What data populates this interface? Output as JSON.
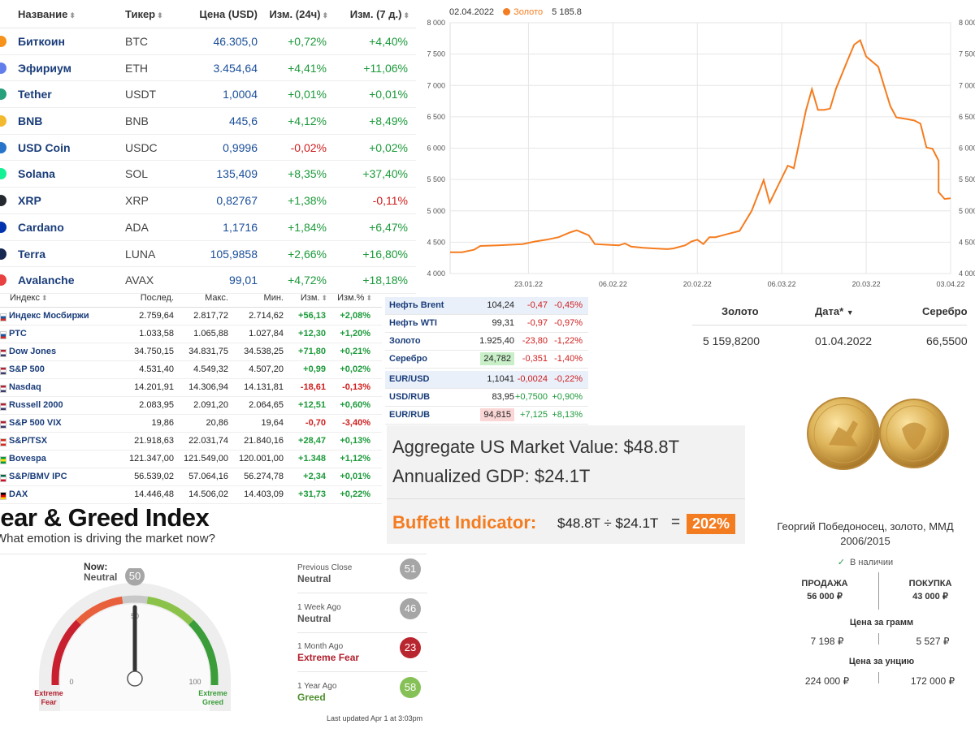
{
  "crypto": {
    "headers": {
      "name": "Название",
      "ticker": "Тикер",
      "price": "Цена (USD)",
      "h24": "Изм. (24ч)",
      "d7": "Изм. (7 д.)"
    },
    "rows": [
      {
        "name": "Биткоин",
        "ticker": "BTC",
        "price": "46.305,0",
        "h24": "+0,72%",
        "d7": "+4,40%",
        "icon": "bitcoin-icon",
        "color": "#f7931a"
      },
      {
        "name": "Эфириум",
        "ticker": "ETH",
        "price": "3.454,64",
        "h24": "+4,41%",
        "d7": "+11,06%",
        "icon": "ethereum-icon",
        "color": "#627eea"
      },
      {
        "name": "Tether",
        "ticker": "USDT",
        "price": "1,0004",
        "h24": "+0,01%",
        "d7": "+0,01%",
        "icon": "tether-icon",
        "color": "#26a17b"
      },
      {
        "name": "BNB",
        "ticker": "BNB",
        "price": "445,6",
        "h24": "+4,12%",
        "d7": "+8,49%",
        "icon": "bnb-icon",
        "color": "#f3ba2f"
      },
      {
        "name": "USD Coin",
        "ticker": "USDC",
        "price": "0,9996",
        "h24": "-0,02%",
        "d7": "+0,02%",
        "icon": "usdc-icon",
        "color": "#2775ca"
      },
      {
        "name": "Solana",
        "ticker": "SOL",
        "price": "135,409",
        "h24": "+8,35%",
        "d7": "+37,40%",
        "icon": "solana-icon",
        "color": "#14f195"
      },
      {
        "name": "XRP",
        "ticker": "XRP",
        "price": "0,82767",
        "h24": "+1,38%",
        "d7": "-0,11%",
        "icon": "xrp-icon",
        "color": "#23292f"
      },
      {
        "name": "Cardano",
        "ticker": "ADA",
        "price": "1,1716",
        "h24": "+1,84%",
        "d7": "+6,47%",
        "icon": "cardano-icon",
        "color": "#0033ad"
      },
      {
        "name": "Terra",
        "ticker": "LUNA",
        "price": "105,9858",
        "h24": "+2,66%",
        "d7": "+16,80%",
        "icon": "terra-icon",
        "color": "#172852"
      },
      {
        "name": "Avalanche",
        "ticker": "AVAX",
        "price": "99,01",
        "h24": "+4,72%",
        "d7": "+18,18%",
        "icon": "avalanche-icon",
        "color": "#e84142"
      }
    ]
  },
  "chart_data": {
    "type": "line",
    "legend": {
      "date": "02.04.2022",
      "series": "Золото",
      "value": "5 185.8"
    },
    "x_ticks": [
      "23.01.22",
      "06.02.22",
      "20.02.22",
      "06.03.22",
      "20.03.22",
      "03.04.22"
    ],
    "y_ticks": [
      "4 000",
      "4 500",
      "5 000",
      "5 500",
      "6 000",
      "6 500",
      "7 000",
      "7 500",
      "8 000"
    ],
    "ylim": [
      4000,
      8000
    ],
    "xlim": [
      "2022-01-10",
      "2022-04-03"
    ],
    "color": "#f57c1f",
    "series": [
      {
        "name": "Золото",
        "points": [
          [
            "2022-01-10",
            4340
          ],
          [
            "2022-01-12",
            4340
          ],
          [
            "2022-01-14",
            4380
          ],
          [
            "2022-01-15",
            4440
          ],
          [
            "2022-01-18",
            4450
          ],
          [
            "2022-01-20",
            4460
          ],
          [
            "2022-01-22",
            4470
          ],
          [
            "2022-01-24",
            4510
          ],
          [
            "2022-01-26",
            4540
          ],
          [
            "2022-01-28",
            4580
          ],
          [
            "2022-01-30",
            4660
          ],
          [
            "2022-01-31",
            4690
          ],
          [
            "2022-02-02",
            4610
          ],
          [
            "2022-02-03",
            4470
          ],
          [
            "2022-02-05",
            4460
          ],
          [
            "2022-02-07",
            4450
          ],
          [
            "2022-02-08",
            4480
          ],
          [
            "2022-02-09",
            4430
          ],
          [
            "2022-02-11",
            4410
          ],
          [
            "2022-02-13",
            4400
          ],
          [
            "2022-02-15",
            4390
          ],
          [
            "2022-02-16",
            4400
          ],
          [
            "2022-02-18",
            4450
          ],
          [
            "2022-02-19",
            4510
          ],
          [
            "2022-02-20",
            4540
          ],
          [
            "2022-02-21",
            4470
          ],
          [
            "2022-02-22",
            4580
          ],
          [
            "2022-02-23",
            4580
          ],
          [
            "2022-02-25",
            4630
          ],
          [
            "2022-02-27",
            4680
          ],
          [
            "2022-03-01",
            5000
          ],
          [
            "2022-03-03",
            5490
          ],
          [
            "2022-03-04",
            5130
          ],
          [
            "2022-03-07",
            5720
          ],
          [
            "2022-03-08",
            5680
          ],
          [
            "2022-03-10",
            6600
          ],
          [
            "2022-03-11",
            6940
          ],
          [
            "2022-03-12",
            6610
          ],
          [
            "2022-03-13",
            6610
          ],
          [
            "2022-03-14",
            6630
          ],
          [
            "2022-03-15",
            6950
          ],
          [
            "2022-03-17",
            7420
          ],
          [
            "2022-03-18",
            7650
          ],
          [
            "2022-03-19",
            7720
          ],
          [
            "2022-03-20",
            7460
          ],
          [
            "2022-03-22",
            7300
          ],
          [
            "2022-03-23",
            6980
          ],
          [
            "2022-03-24",
            6670
          ],
          [
            "2022-03-25",
            6490
          ],
          [
            "2022-03-27",
            6460
          ],
          [
            "2022-03-28",
            6440
          ],
          [
            "2022-03-29",
            6390
          ],
          [
            "2022-03-30",
            6010
          ],
          [
            "2022-03-31",
            5990
          ],
          [
            "2022-04-01",
            5800
          ],
          [
            "2022-04-01",
            5300
          ],
          [
            "2022-04-02",
            5190
          ],
          [
            "2022-04-03",
            5200
          ]
        ]
      }
    ]
  },
  "indices": {
    "headers": {
      "name": "Индекс",
      "last": "Послед.",
      "max": "Макс.",
      "min": "Мин.",
      "chg": "Изм.",
      "pct": "Изм.%"
    },
    "rows": [
      {
        "name": "Индекс Мосбиржи",
        "last": "2.759,64",
        "max": "2.817,72",
        "min": "2.714,62",
        "chg": "+56,13",
        "pct": "+2,08%",
        "flag": "flag-russia-icon"
      },
      {
        "name": "РТС",
        "last": "1.033,58",
        "max": "1.065,88",
        "min": "1.027,84",
        "chg": "+12,30",
        "pct": "+1,20%",
        "flag": "flag-russia-icon"
      },
      {
        "name": "Dow Jones",
        "last": "34.750,15",
        "max": "34.831,75",
        "min": "34.538,25",
        "chg": "+71,80",
        "pct": "+0,21%",
        "flag": "flag-usa-icon"
      },
      {
        "name": "S&P 500",
        "last": "4.531,40",
        "max": "4.549,32",
        "min": "4.507,20",
        "chg": "+0,99",
        "pct": "+0,02%",
        "flag": "flag-usa-icon"
      },
      {
        "name": "Nasdaq",
        "last": "14.201,91",
        "max": "14.306,94",
        "min": "14.131,81",
        "chg": "-18,61",
        "pct": "-0,13%",
        "flag": "flag-usa-icon"
      },
      {
        "name": "Russell 2000",
        "last": "2.083,95",
        "max": "2.091,20",
        "min": "2.064,65",
        "chg": "+12,51",
        "pct": "+0,60%",
        "flag": "flag-usa-icon"
      },
      {
        "name": "S&P 500 VIX",
        "last": "19,86",
        "max": "20,86",
        "min": "19,64",
        "chg": "-0,70",
        "pct": "-3,40%",
        "flag": "flag-usa-icon"
      },
      {
        "name": "S&P/TSX",
        "last": "21.918,63",
        "max": "22.031,74",
        "min": "21.840,16",
        "chg": "+28,47",
        "pct": "+0,13%",
        "flag": "flag-canada-icon"
      },
      {
        "name": "Bovespa",
        "last": "121.347,00",
        "max": "121.549,00",
        "min": "120.001,00",
        "chg": "+1.348",
        "pct": "+1,12%",
        "flag": "flag-brazil-icon"
      },
      {
        "name": "S&P/BMV IPC",
        "last": "56.539,02",
        "max": "57.064,16",
        "min": "56.274,78",
        "chg": "+2,34",
        "pct": "+0,01%",
        "flag": "flag-mexico-icon"
      },
      {
        "name": "DAX",
        "last": "14.446,48",
        "max": "14.506,02",
        "min": "14.403,09",
        "chg": "+31,73",
        "pct": "+0,22%",
        "flag": "flag-germany-icon"
      }
    ]
  },
  "commodities": [
    {
      "name": "Нефть Brent",
      "val": "104,24",
      "chg": "-0,47",
      "pct": "-0,45%",
      "hl": true
    },
    {
      "name": "Нефть WTI",
      "val": "99,31",
      "chg": "-0,97",
      "pct": "-0,97%",
      "hl": false
    },
    {
      "name": "Золото",
      "val": "1.925,40",
      "chg": "-23,80",
      "pct": "-1,22%",
      "hl": false
    },
    {
      "name": "Серебро",
      "val": "24,782",
      "chg": "-0,351",
      "pct": "-1,40%",
      "hl": false,
      "cell": "green"
    },
    {
      "name": "EUR/USD",
      "val": "1,1041",
      "chg": "-0,0024",
      "pct": "-0,22%",
      "hl": true
    },
    {
      "name": "USD/RUB",
      "val": "83,95",
      "chg": "+0,7500",
      "pct": "+0,90%",
      "hl": false
    },
    {
      "name": "EUR/RUB",
      "val": "94,815",
      "chg": "+7,125",
      "pct": "+8,13%",
      "hl": false,
      "cell": "red"
    }
  ],
  "buffett": {
    "line1": "Aggregate US Market Value: $48.8T",
    "line2": "Annualized GDP: $24.1T",
    "label": "Buffett Indicator:",
    "equation": "$48.8T ÷ $24.1T",
    "equals": "=",
    "value": "202%"
  },
  "gold_table": {
    "h_gold": "Золото",
    "h_date": "Дата*",
    "h_silver": "Серебро",
    "gold": "5 159,8200",
    "date": "01.04.2022",
    "silver": "66,5500"
  },
  "coin": {
    "title": "Георгий Победоносец, золото, ММД 2006/2015",
    "availability": "В наличии",
    "sell_label": "ПРОДАЖА",
    "sell_price": "56 000 ₽",
    "buy_label": "ПОКУПКА",
    "buy_price": "43 000 ₽",
    "gram_label": "Цена за грамм",
    "gram_sell": "7 198 ₽",
    "gram_buy": "5 527 ₽",
    "ounce_label": "Цена за унцию",
    "ounce_sell": "224 000 ₽",
    "ounce_buy": "172 000 ₽"
  },
  "fear_greed": {
    "title": "Fear & Greed Index",
    "subtitle": "What emotion is driving the market now?",
    "now_label": "Now:",
    "now_text": "Neutral",
    "now_value": 50,
    "scale": {
      "min": "0",
      "mid": "50",
      "max": "100",
      "left_label_1": "Extreme",
      "left_label_2": "Fear",
      "right_label_1": "Extreme",
      "right_label_2": "Greed"
    },
    "history": [
      {
        "when": "Previous Close",
        "label": "Neutral",
        "value": 51,
        "color": "#a6a6a6",
        "tone": ""
      },
      {
        "when": "1 Week Ago",
        "label": "Neutral",
        "value": 46,
        "color": "#a6a6a6",
        "tone": ""
      },
      {
        "when": "1 Month Ago",
        "label": "Extreme Fear",
        "value": 23,
        "color": "#b9262f",
        "tone": "red"
      },
      {
        "when": "1 Year Ago",
        "label": "Greed",
        "value": 58,
        "color": "#86c157",
        "tone": "green"
      }
    ],
    "updated": "Last updated Apr 1 at 3:03pm"
  }
}
